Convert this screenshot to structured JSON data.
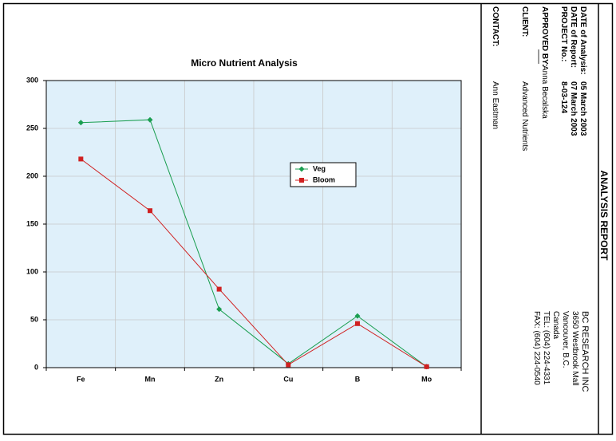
{
  "report": {
    "title": "ANALYSIS REPORT",
    "fields": [
      {
        "label": "DATE of Analysis:",
        "value": "05 March 2003"
      },
      {
        "label": "DATE of Report:",
        "value": "07 March 2003"
      },
      {
        "label": "PROJECT No.:",
        "value": "8-03-124"
      },
      {
        "label": "APPROVED BY:",
        "value": "Anna Becalska"
      },
      {
        "label": "CLIENT:",
        "value": "Advanced Nutrients"
      },
      {
        "label": "CONTACT:",
        "value": "Ann Eastman"
      }
    ],
    "company": [
      "BC RESEARCH INC",
      "3650 Westbrook Mall",
      "Vancouver, B.C.",
      "Canada",
      "TEL: (604) 224-4331",
      "FAX: (604) 224-0540"
    ]
  },
  "chart_data": {
    "type": "line",
    "title": "Micro Nutrient Analysis",
    "categories": [
      "Fe",
      "Mn",
      "Zn",
      "Cu",
      "B",
      "Mo"
    ],
    "series": [
      {
        "name": "Veg",
        "color": "#1a9e50",
        "marker": "diamond",
        "values": [
          256,
          259,
          61,
          4,
          54,
          1
        ]
      },
      {
        "name": "Bloom",
        "color": "#d02020",
        "marker": "square",
        "values": [
          218,
          164,
          82,
          3,
          46,
          1
        ]
      }
    ],
    "ylim": [
      0,
      300
    ],
    "yticks": [
      0,
      50,
      100,
      150,
      200,
      250,
      300
    ],
    "grid": true,
    "legend": "center"
  }
}
